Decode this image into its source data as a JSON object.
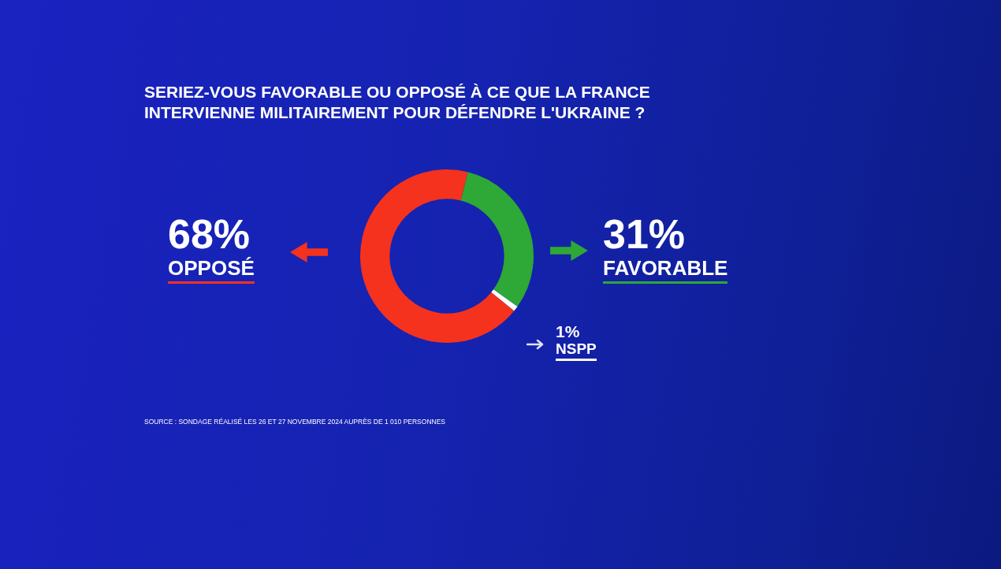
{
  "chart_data": {
    "type": "donut",
    "title": "SERIEZ-VOUS FAVORABLE OU OPPOSÉ À CE QUE LA FRANCE INTERVIENNE MILITAIREMENT POUR DÉFENDRE L'UKRAINE ?",
    "categories": [
      "FAVORABLE",
      "NSPP",
      "OPPOSÉ"
    ],
    "values": [
      31,
      1,
      68
    ],
    "colors": [
      "#2ea836",
      "#ffffff",
      "#f5321e"
    ],
    "value_labels": [
      "31%",
      "1%",
      "68%"
    ],
    "legend": false,
    "annotations": [
      "SOURCE : SONDAGE RÉALISÉ LES 26 ET 27 NOVEMBRE 2024 AUPRÈS DE 1 010 PERSONNES"
    ]
  }
}
